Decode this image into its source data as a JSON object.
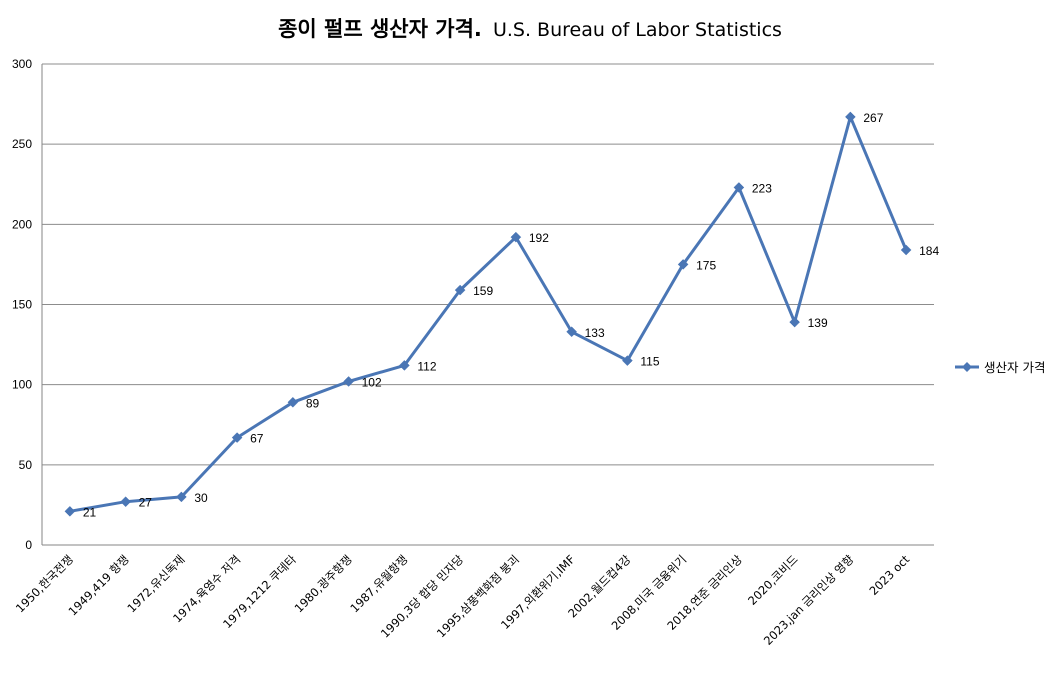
{
  "chart_data": {
    "type": "line",
    "title": "종이 펄프 생산자 가격.",
    "subtitle": "U.S. Bureau of Labor Statistics",
    "xlabel": "",
    "ylabel": "",
    "ylim": [
      0,
      300
    ],
    "yticks": [
      0,
      50,
      100,
      150,
      200,
      250,
      300
    ],
    "grid": true,
    "legend_position": "right",
    "categories": [
      "1950,한국전쟁",
      "1949,419 항쟁",
      "1972,유신독재",
      "1974,육영수 저격",
      "1979,1212 쿠데타",
      "1980,광주항쟁",
      "1987,유월항쟁",
      "1990,3당 합당 민자당",
      "1995,삼풍백화점 붕괴",
      "1997,외환위기,IMF",
      "2002,월드컵4강",
      "2008,미국 금융위기",
      "2018,연준 금리인상",
      "2020,코비드",
      "2023,jan 금리인상 영향",
      "2023 oct"
    ],
    "series": [
      {
        "name": "생산자 가격",
        "color": "#4a76b5",
        "values": [
          21,
          27,
          30,
          67,
          89,
          102,
          112,
          159,
          192,
          133,
          115,
          175,
          223,
          139,
          267,
          184
        ]
      }
    ]
  }
}
